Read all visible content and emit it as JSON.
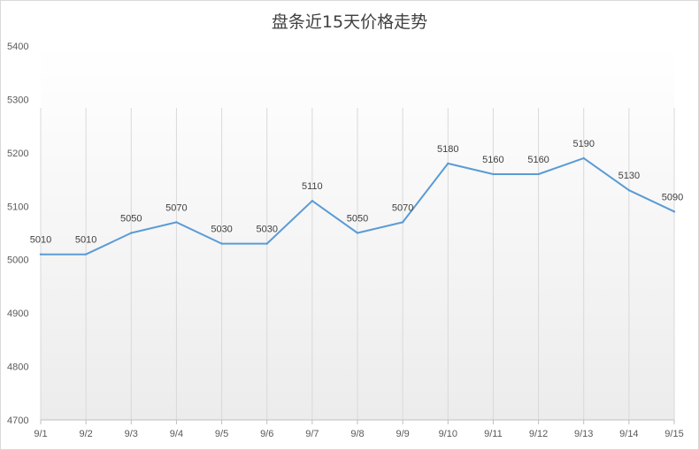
{
  "chart_data": {
    "type": "line",
    "title": "盘条近15天价格走势",
    "xlabel": "",
    "ylabel": "",
    "categories": [
      "9/1",
      "9/2",
      "9/3",
      "9/4",
      "9/5",
      "9/6",
      "9/7",
      "9/8",
      "9/9",
      "9/10",
      "9/11",
      "9/12",
      "9/13",
      "9/14",
      "9/15"
    ],
    "series": [
      {
        "values": [
          5010,
          5010,
          5050,
          5070,
          5030,
          5030,
          5110,
          5050,
          5070,
          5180,
          5160,
          5160,
          5190,
          5130,
          5090
        ]
      }
    ],
    "ylim": [
      4700,
      5400
    ],
    "yticks": [
      4700,
      4800,
      4900,
      5000,
      5100,
      5200,
      5300,
      5400
    ],
    "vertical_grid": true,
    "horizontal_grid": false,
    "data_labels": true,
    "legend": "none",
    "colors": {
      "line": "#5b9bd5",
      "grid": "#d9d9d9",
      "axis": "#bfbfbf",
      "plot_gradient_top": "#ffffff",
      "plot_gradient_bottom": "#ececec"
    }
  }
}
